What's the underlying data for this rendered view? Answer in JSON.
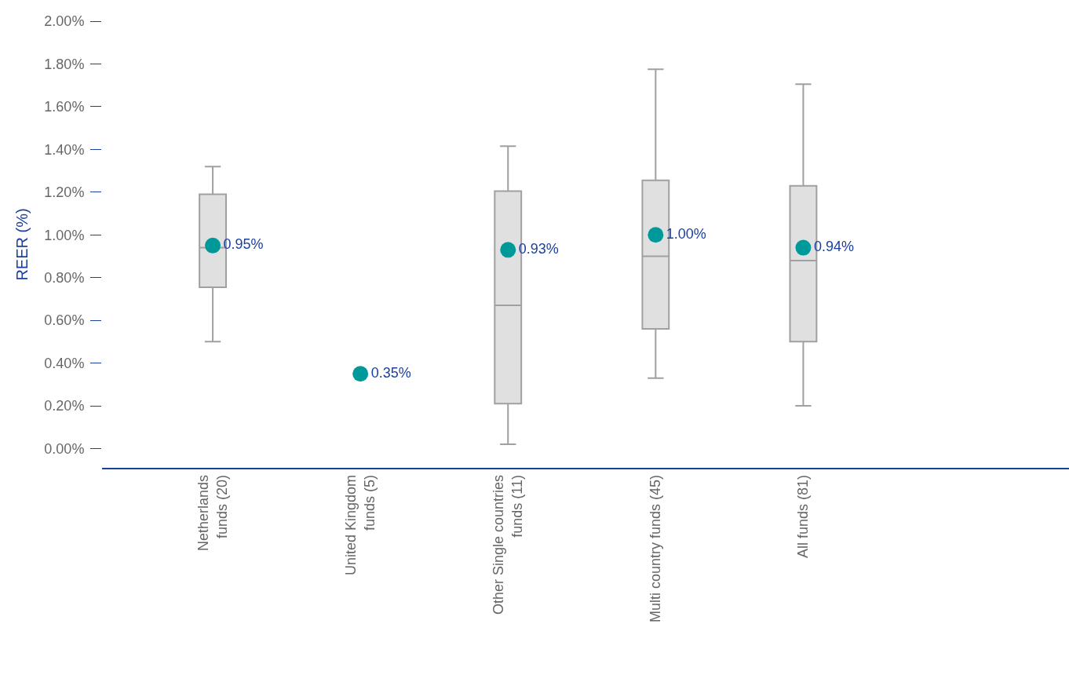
{
  "chart_data": {
    "type": "box",
    "ylabel": "REER (%)",
    "categories": [
      "Netherlands\nfunds (20)",
      "United Kingdom\nfunds (5)",
      "Other Single countries\nfunds (11)",
      "Multi country funds (45)",
      "All funds (81)"
    ],
    "series": [
      {
        "color": "#a0a0a0",
        "boxes": [
          {
            "low": 0.5,
            "q1": 0.755,
            "median": 0.94,
            "q3": 1.19,
            "high": 1.32
          },
          null,
          {
            "low": 0.02,
            "q1": 0.21,
            "median": 0.67,
            "q3": 1.205,
            "high": 1.415
          },
          {
            "low": 0.33,
            "q1": 0.56,
            "median": 0.9,
            "q3": 1.255,
            "high": 1.775
          },
          {
            "low": 0.2,
            "q1": 0.5,
            "median": 0.88,
            "q3": 1.23,
            "high": 1.705
          }
        ]
      },
      {
        "type": "scatter",
        "color": "#009999",
        "marker": "circle",
        "values": [
          0.95,
          0.35,
          0.93,
          1.0,
          0.94
        ],
        "value_labels": [
          "0.95%",
          "0.35%",
          "0.93%",
          "1.00%",
          "0.94%"
        ]
      }
    ],
    "ylim": [
      -0.09,
      2.0
    ],
    "yticks": [
      {
        "value": 0,
        "label": "0.00%"
      },
      {
        "value": 0.2,
        "label": "0.20%"
      },
      {
        "value": 0.4,
        "label": "0.40%"
      },
      {
        "value": 0.6,
        "label": "0.60%"
      },
      {
        "value": 0.8,
        "label": "0.80%"
      },
      {
        "value": 1.0,
        "label": "1.00%"
      },
      {
        "value": 1.2,
        "label": "1.20%"
      },
      {
        "value": 1.4,
        "label": "1.40%"
      },
      {
        "value": 1.6,
        "label": "1.60%"
      },
      {
        "value": 1.8,
        "label": "1.80%"
      },
      {
        "value": 2.0,
        "label": "2.00%"
      }
    ]
  }
}
